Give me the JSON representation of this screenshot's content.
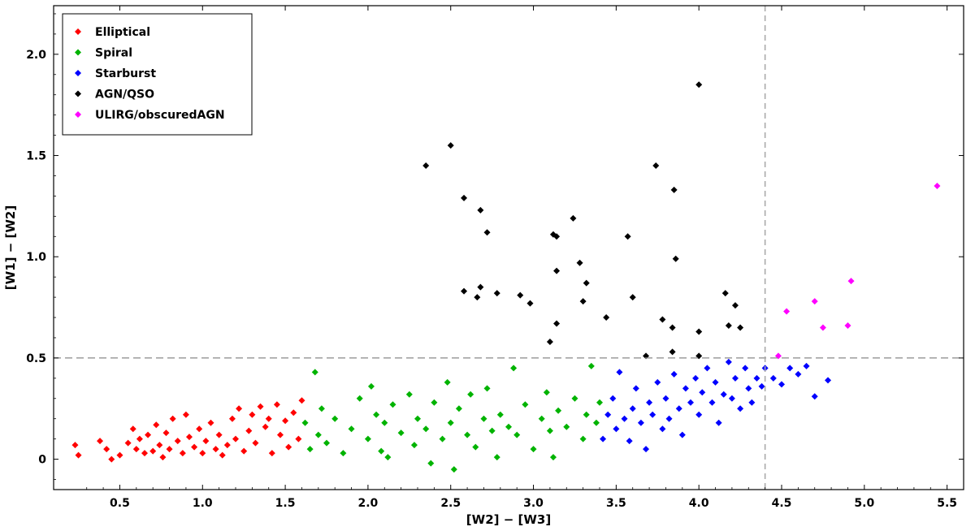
{
  "chart_data": {
    "type": "scatter",
    "xlabel": "[W2] − [W3]",
    "ylabel": "[W1] − [W2]",
    "xlim": [
      0.1,
      5.6
    ],
    "ylim": [
      -0.15,
      2.24
    ],
    "xticks": [
      "0.5",
      "1.0",
      "1.5",
      "2.0",
      "2.5",
      "3.0",
      "3.5",
      "4.0",
      "4.5",
      "5.0",
      "5.5"
    ],
    "yticks": [
      "0",
      "0.5",
      "1.0",
      "1.5",
      "2.0"
    ],
    "grid": false,
    "legend_position": "top-left",
    "reference_lines": {
      "horizontal_y": 0.5,
      "vertical_x": 4.4
    },
    "series": [
      {
        "name": "Elliptical",
        "color": "#ff0000",
        "points": [
          [
            0.23,
            0.07
          ],
          [
            0.25,
            0.02
          ],
          [
            0.38,
            0.09
          ],
          [
            0.42,
            0.05
          ],
          [
            0.45,
            0.0
          ],
          [
            0.5,
            0.02
          ],
          [
            0.55,
            0.08
          ],
          [
            0.58,
            0.15
          ],
          [
            0.6,
            0.05
          ],
          [
            0.62,
            0.1
          ],
          [
            0.65,
            0.03
          ],
          [
            0.67,
            0.12
          ],
          [
            0.7,
            0.04
          ],
          [
            0.72,
            0.17
          ],
          [
            0.74,
            0.07
          ],
          [
            0.76,
            0.01
          ],
          [
            0.78,
            0.13
          ],
          [
            0.8,
            0.05
          ],
          [
            0.82,
            0.2
          ],
          [
            0.85,
            0.09
          ],
          [
            0.88,
            0.03
          ],
          [
            0.9,
            0.22
          ],
          [
            0.92,
            0.11
          ],
          [
            0.95,
            0.06
          ],
          [
            0.98,
            0.15
          ],
          [
            1.0,
            0.03
          ],
          [
            1.02,
            0.09
          ],
          [
            1.05,
            0.18
          ],
          [
            1.08,
            0.05
          ],
          [
            1.1,
            0.12
          ],
          [
            1.12,
            0.02
          ],
          [
            1.15,
            0.07
          ],
          [
            1.18,
            0.2
          ],
          [
            1.2,
            0.1
          ],
          [
            1.22,
            0.25
          ],
          [
            1.25,
            0.04
          ],
          [
            1.28,
            0.14
          ],
          [
            1.3,
            0.22
          ],
          [
            1.32,
            0.08
          ],
          [
            1.35,
            0.26
          ],
          [
            1.38,
            0.16
          ],
          [
            1.4,
            0.2
          ],
          [
            1.42,
            0.03
          ],
          [
            1.45,
            0.27
          ],
          [
            1.47,
            0.12
          ],
          [
            1.5,
            0.19
          ],
          [
            1.52,
            0.06
          ],
          [
            1.55,
            0.23
          ],
          [
            1.58,
            0.1
          ],
          [
            1.6,
            0.29
          ]
        ]
      },
      {
        "name": "Spiral",
        "color": "#00b300",
        "points": [
          [
            1.62,
            0.18
          ],
          [
            1.65,
            0.05
          ],
          [
            1.68,
            0.43
          ],
          [
            1.7,
            0.12
          ],
          [
            1.72,
            0.25
          ],
          [
            1.75,
            0.08
          ],
          [
            1.8,
            0.2
          ],
          [
            1.85,
            0.03
          ],
          [
            1.9,
            0.15
          ],
          [
            1.95,
            0.3
          ],
          [
            2.0,
            0.1
          ],
          [
            2.02,
            0.36
          ],
          [
            2.05,
            0.22
          ],
          [
            2.08,
            0.04
          ],
          [
            2.1,
            0.18
          ],
          [
            2.12,
            0.01
          ],
          [
            2.15,
            0.27
          ],
          [
            2.2,
            0.13
          ],
          [
            2.25,
            0.32
          ],
          [
            2.28,
            0.07
          ],
          [
            2.3,
            0.2
          ],
          [
            2.35,
            0.15
          ],
          [
            2.38,
            -0.02
          ],
          [
            2.4,
            0.28
          ],
          [
            2.45,
            0.1
          ],
          [
            2.48,
            0.38
          ],
          [
            2.5,
            0.18
          ],
          [
            2.52,
            -0.05
          ],
          [
            2.55,
            0.25
          ],
          [
            2.6,
            0.12
          ],
          [
            2.62,
            0.32
          ],
          [
            2.65,
            0.06
          ],
          [
            2.7,
            0.2
          ],
          [
            2.72,
            0.35
          ],
          [
            2.75,
            0.14
          ],
          [
            2.78,
            0.01
          ],
          [
            2.8,
            0.22
          ],
          [
            2.85,
            0.16
          ],
          [
            2.88,
            0.45
          ],
          [
            2.9,
            0.12
          ],
          [
            2.95,
            0.27
          ],
          [
            3.0,
            0.05
          ],
          [
            3.05,
            0.2
          ],
          [
            3.08,
            0.33
          ],
          [
            3.1,
            0.14
          ],
          [
            3.12,
            0.01
          ],
          [
            3.15,
            0.24
          ],
          [
            3.2,
            0.16
          ],
          [
            3.25,
            0.3
          ],
          [
            3.3,
            0.1
          ],
          [
            3.32,
            0.22
          ],
          [
            3.35,
            0.46
          ],
          [
            3.38,
            0.18
          ],
          [
            3.4,
            0.28
          ]
        ]
      },
      {
        "name": "Starburst",
        "color": "#0000ff",
        "points": [
          [
            3.42,
            0.1
          ],
          [
            3.45,
            0.22
          ],
          [
            3.48,
            0.3
          ],
          [
            3.5,
            0.15
          ],
          [
            3.52,
            0.43
          ],
          [
            3.55,
            0.2
          ],
          [
            3.58,
            0.09
          ],
          [
            3.6,
            0.25
          ],
          [
            3.62,
            0.35
          ],
          [
            3.65,
            0.18
          ],
          [
            3.68,
            0.05
          ],
          [
            3.7,
            0.28
          ],
          [
            3.72,
            0.22
          ],
          [
            3.75,
            0.38
          ],
          [
            3.78,
            0.15
          ],
          [
            3.8,
            0.3
          ],
          [
            3.82,
            0.2
          ],
          [
            3.85,
            0.42
          ],
          [
            3.88,
            0.25
          ],
          [
            3.9,
            0.12
          ],
          [
            3.92,
            0.35
          ],
          [
            3.95,
            0.28
          ],
          [
            3.98,
            0.4
          ],
          [
            4.0,
            0.22
          ],
          [
            4.02,
            0.33
          ],
          [
            4.05,
            0.45
          ],
          [
            4.08,
            0.28
          ],
          [
            4.1,
            0.38
          ],
          [
            4.12,
            0.18
          ],
          [
            4.15,
            0.32
          ],
          [
            4.18,
            0.48
          ],
          [
            4.2,
            0.3
          ],
          [
            4.22,
            0.4
          ],
          [
            4.25,
            0.25
          ],
          [
            4.28,
            0.45
          ],
          [
            4.3,
            0.35
          ],
          [
            4.32,
            0.28
          ],
          [
            4.35,
            0.4
          ],
          [
            4.38,
            0.36
          ],
          [
            4.4,
            0.45
          ],
          [
            4.45,
            0.4
          ],
          [
            4.5,
            0.37
          ],
          [
            4.55,
            0.45
          ],
          [
            4.6,
            0.42
          ],
          [
            4.65,
            0.46
          ],
          [
            4.7,
            0.31
          ],
          [
            4.78,
            0.39
          ]
        ]
      },
      {
        "name": "AGN/QSO",
        "color": "#000000",
        "points": [
          [
            2.35,
            1.45
          ],
          [
            2.5,
            1.55
          ],
          [
            2.58,
            1.29
          ],
          [
            2.68,
            1.23
          ],
          [
            2.72,
            1.12
          ],
          [
            2.58,
            0.83
          ],
          [
            2.66,
            0.8
          ],
          [
            2.68,
            0.85
          ],
          [
            2.78,
            0.82
          ],
          [
            2.92,
            0.81
          ],
          [
            2.98,
            0.77
          ],
          [
            3.1,
            0.58
          ],
          [
            3.12,
            1.11
          ],
          [
            3.14,
            1.1
          ],
          [
            3.14,
            0.93
          ],
          [
            3.14,
            0.67
          ],
          [
            3.24,
            1.19
          ],
          [
            3.28,
            0.97
          ],
          [
            3.3,
            0.78
          ],
          [
            3.32,
            0.87
          ],
          [
            3.44,
            0.7
          ],
          [
            3.57,
            1.1
          ],
          [
            3.6,
            0.8
          ],
          [
            3.68,
            0.51
          ],
          [
            3.74,
            1.45
          ],
          [
            3.78,
            0.69
          ],
          [
            3.84,
            0.65
          ],
          [
            3.84,
            0.53
          ],
          [
            3.85,
            1.33
          ],
          [
            3.86,
            0.99
          ],
          [
            4.0,
            1.85
          ],
          [
            4.0,
            0.63
          ],
          [
            4.0,
            0.51
          ],
          [
            4.16,
            0.82
          ],
          [
            4.18,
            0.66
          ],
          [
            4.22,
            0.76
          ],
          [
            4.25,
            0.65
          ]
        ]
      },
      {
        "name": "ULIRG/obscuredAGN",
        "color": "#ff00ff",
        "points": [
          [
            4.48,
            0.51
          ],
          [
            4.53,
            0.73
          ],
          [
            4.7,
            0.78
          ],
          [
            4.75,
            0.65
          ],
          [
            4.9,
            0.66
          ],
          [
            4.92,
            0.88
          ],
          [
            5.44,
            1.35
          ]
        ]
      }
    ]
  }
}
